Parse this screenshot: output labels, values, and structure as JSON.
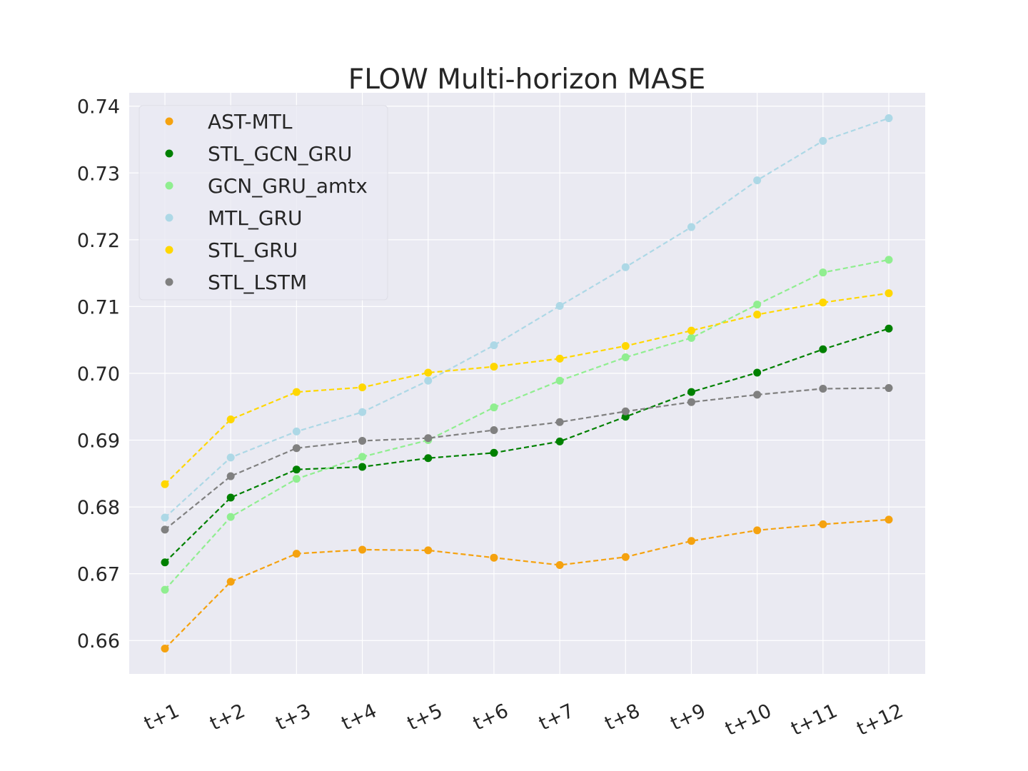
{
  "chart_data": {
    "type": "line",
    "title": "FLOW Multi-horizon MASE",
    "xlabel": "",
    "ylabel": "",
    "categories": [
      "t+1",
      "t+2",
      "t+3",
      "t+4",
      "t+5",
      "t+6",
      "t+7",
      "t+8",
      "t+9",
      "t+10",
      "t+11",
      "t+12"
    ],
    "ylim": [
      0.655,
      0.742
    ],
    "yticks": [
      0.66,
      0.67,
      0.68,
      0.69,
      0.7,
      0.71,
      0.72,
      0.73,
      0.74
    ],
    "ytick_labels": [
      "0.66",
      "0.67",
      "0.68",
      "0.69",
      "0.70",
      "0.71",
      "0.72",
      "0.73",
      "0.74"
    ],
    "grid": true,
    "background": "#eaeaf2",
    "line_style": "dashed",
    "marker": "circle",
    "legend_position": "top-left",
    "series": [
      {
        "name": "AST-MTL",
        "color": "#f5a20f",
        "values": [
          0.6588,
          0.6688,
          0.673,
          0.6736,
          0.6735,
          0.6724,
          0.6713,
          0.6725,
          0.6749,
          0.6765,
          0.6774,
          0.6781
        ]
      },
      {
        "name": "STL_GCN_GRU",
        "color": "#008000",
        "values": [
          0.6717,
          0.6814,
          0.6856,
          0.686,
          0.6873,
          0.6881,
          0.6898,
          0.6935,
          0.6972,
          0.7001,
          0.7036,
          0.7067
        ]
      },
      {
        "name": "GCN_GRU_amtx",
        "color": "#90ee90",
        "values": [
          0.6676,
          0.6785,
          0.6842,
          0.6875,
          0.69,
          0.6949,
          0.6989,
          0.7024,
          0.7053,
          0.7103,
          0.7151,
          0.717
        ]
      },
      {
        "name": "MTL_GRU",
        "color": "#add8e6",
        "values": [
          0.6784,
          0.6874,
          0.6913,
          0.6942,
          0.6989,
          0.7042,
          0.7101,
          0.7159,
          0.7219,
          0.7289,
          0.7348,
          0.7382
        ]
      },
      {
        "name": "STL_GRU",
        "color": "#ffd700",
        "values": [
          0.6834,
          0.6931,
          0.6972,
          0.6979,
          0.7001,
          0.701,
          0.7022,
          0.7041,
          0.7064,
          0.7088,
          0.7106,
          0.712
        ]
      },
      {
        "name": "STL_LSTM",
        "color": "#808080",
        "values": [
          0.6766,
          0.6846,
          0.6888,
          0.6899,
          0.6903,
          0.6915,
          0.6927,
          0.6943,
          0.6957,
          0.6968,
          0.6977,
          0.6978
        ]
      }
    ]
  }
}
